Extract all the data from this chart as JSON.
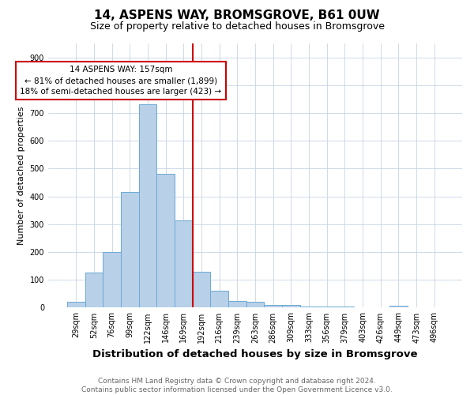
{
  "title": "14, ASPENS WAY, BROMSGROVE, B61 0UW",
  "subtitle": "Size of property relative to detached houses in Bromsgrove",
  "xlabel": "Distribution of detached houses by size in Bromsgrove",
  "ylabel": "Number of detached properties",
  "categories": [
    "29sqm",
    "52sqm",
    "76sqm",
    "99sqm",
    "122sqm",
    "146sqm",
    "169sqm",
    "192sqm",
    "216sqm",
    "239sqm",
    "263sqm",
    "286sqm",
    "309sqm",
    "333sqm",
    "356sqm",
    "379sqm",
    "403sqm",
    "426sqm",
    "449sqm",
    "473sqm",
    "496sqm"
  ],
  "values": [
    20,
    125,
    200,
    415,
    730,
    480,
    315,
    130,
    60,
    25,
    20,
    10,
    10,
    5,
    3,
    5,
    0,
    0,
    8,
    0,
    0
  ],
  "bar_color": "#b8d0e8",
  "bar_edgecolor": "#6aaad4",
  "bar_linewidth": 0.7,
  "red_line_index": 6.5,
  "red_line_color": "#cc0000",
  "annotation_text": "14 ASPENS WAY: 157sqm\n← 81% of detached houses are smaller (1,899)\n18% of semi-detached houses are larger (423) →",
  "annotation_box_color": "#ffffff",
  "annotation_box_edgecolor": "#cc0000",
  "ylim": [
    0,
    950
  ],
  "yticks": [
    0,
    100,
    200,
    300,
    400,
    500,
    600,
    700,
    800,
    900
  ],
  "footer1": "Contains HM Land Registry data © Crown copyright and database right 2024.",
  "footer2": "Contains public sector information licensed under the Open Government Licence v3.0.",
  "background_color": "#ffffff",
  "grid_color": "#c8d4e4",
  "title_fontsize": 11,
  "subtitle_fontsize": 9,
  "xlabel_fontsize": 9.5,
  "ylabel_fontsize": 8,
  "tick_fontsize": 7,
  "annotation_fontsize": 7.5,
  "footer_fontsize": 6.5
}
